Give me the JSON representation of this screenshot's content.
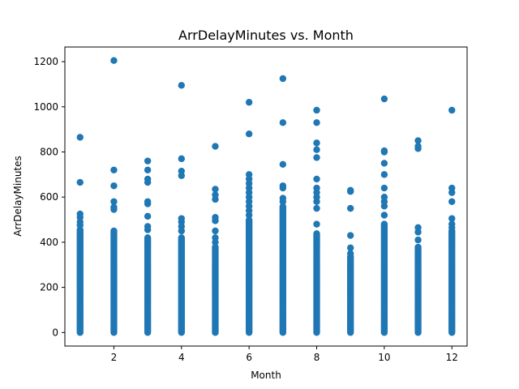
{
  "chart_data": {
    "type": "scatter",
    "title": "ArrDelayMinutes vs. Month",
    "xlabel": "Month",
    "ylabel": "ArrDelayMinutes",
    "xlim": [
      0.55,
      12.45
    ],
    "ylim": [
      -60,
      1265
    ],
    "x_ticks": [
      2,
      4,
      6,
      8,
      10,
      12
    ],
    "y_ticks": [
      0,
      200,
      400,
      600,
      800,
      1000,
      1200
    ],
    "grid": false,
    "marker_color": "#1f77b4",
    "series": [
      {
        "points": [
          {
            "month": 1,
            "dense_max": 460,
            "outliers": [
              475,
              490,
              510,
              525,
              665,
              865
            ]
          },
          {
            "month": 2,
            "dense_max": 450,
            "outliers": [
              545,
              555,
              580,
              650,
              720,
              1205
            ]
          },
          {
            "month": 3,
            "dense_max": 420,
            "outliers": [
              455,
              470,
              515,
              570,
              580,
              665,
              680,
              720,
              760
            ]
          },
          {
            "month": 4,
            "dense_max": 420,
            "outliers": [
              450,
              470,
              490,
              505,
              695,
              715,
              770,
              1095
            ]
          },
          {
            "month": 5,
            "dense_max": 380,
            "outliers": [
              400,
              420,
              450,
              495,
              510,
              590,
              610,
              635,
              825
            ]
          },
          {
            "month": 6,
            "dense_max": 500,
            "outliers": [
              520,
              540,
              560,
              580,
              600,
              620,
              640,
              660,
              680,
              700,
              880,
              1020
            ]
          },
          {
            "month": 7,
            "dense_max": 560,
            "outliers": [
              580,
              595,
              640,
              650,
              745,
              930,
              1125
            ]
          },
          {
            "month": 8,
            "dense_max": 440,
            "outliers": [
              480,
              550,
              580,
              600,
              620,
              640,
              680,
              775,
              810,
              840,
              930,
              985
            ]
          },
          {
            "month": 9,
            "dense_max": 340,
            "outliers": [
              350,
              375,
              430,
              550,
              625,
              630
            ]
          },
          {
            "month": 10,
            "dense_max": 480,
            "outliers": [
              520,
              560,
              580,
              600,
              640,
              700,
              750,
              800,
              805,
              1035
            ]
          },
          {
            "month": 11,
            "dense_max": 380,
            "outliers": [
              410,
              445,
              465,
              815,
              825,
              850
            ]
          },
          {
            "month": 12,
            "dense_max": 450,
            "outliers": [
              465,
              480,
              505,
              580,
              620,
              640,
              985
            ]
          }
        ]
      }
    ]
  }
}
